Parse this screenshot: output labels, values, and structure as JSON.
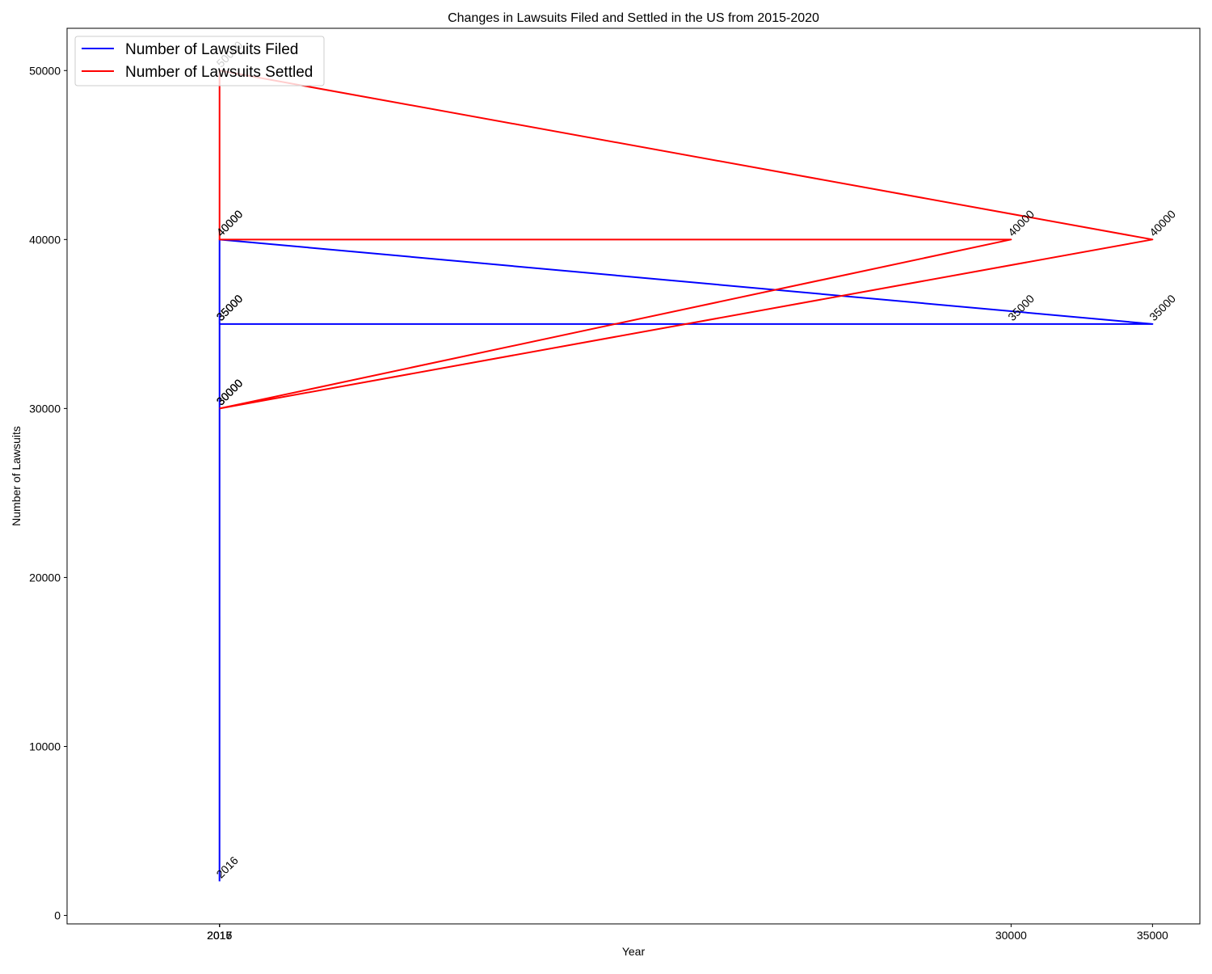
{
  "chart_data": {
    "type": "line",
    "title": "Changes in Lawsuits Filed and Settled in the US from 2015-2020",
    "xlabel": "Year",
    "ylabel": "Number of Lawsuits",
    "xlim": [
      -3375,
      36675
    ],
    "ylim": [
      -500,
      52500
    ],
    "grid": false,
    "legend_placement": "top-left",
    "x_ticks": [
      2015,
      2016,
      2017,
      30000,
      35000
    ],
    "x_tick_labels": [
      "2015",
      "2016",
      "2017",
      "30000",
      "35000"
    ],
    "y_ticks": [
      0,
      10000,
      20000,
      30000,
      40000,
      50000
    ],
    "y_tick_labels": [
      "0",
      "10000",
      "20000",
      "30000",
      "40000",
      "50000"
    ],
    "series": [
      {
        "name": "Number of Lawsuits Filed",
        "color": "#0000ff",
        "points": [
          {
            "x": 2015,
            "y": 2016,
            "label": "2016"
          },
          {
            "x": 2016,
            "y": 30000,
            "label": "30000"
          },
          {
            "x": 2016,
            "y": 35000,
            "label": "35000"
          },
          {
            "x": 30000,
            "y": 35000,
            "label": "35000"
          },
          {
            "x": 2015,
            "y": 35000,
            "label": "35000"
          },
          {
            "x": 2016,
            "y": 40000,
            "label": "40000"
          },
          {
            "x": 35000,
            "y": 35000,
            "label": "35000"
          },
          {
            "x": 2017,
            "y": 35000,
            "label": "35000"
          }
        ]
      },
      {
        "name": "Number of Lawsuits Settled",
        "color": "#ff0000",
        "points": [
          {
            "x": 2015,
            "y": 30000,
            "label": "30000"
          },
          {
            "x": 2016,
            "y": 30000,
            "label": "30000"
          },
          {
            "x": 30000,
            "y": 40000,
            "label": "40000"
          },
          {
            "x": 2016,
            "y": 40000,
            "label": "40000"
          },
          {
            "x": 2016,
            "y": 50000,
            "label": "50000"
          },
          {
            "x": 35000,
            "y": 40000,
            "label": "40000"
          },
          {
            "x": 2017,
            "y": 30000,
            "label": "30000"
          }
        ]
      }
    ]
  }
}
